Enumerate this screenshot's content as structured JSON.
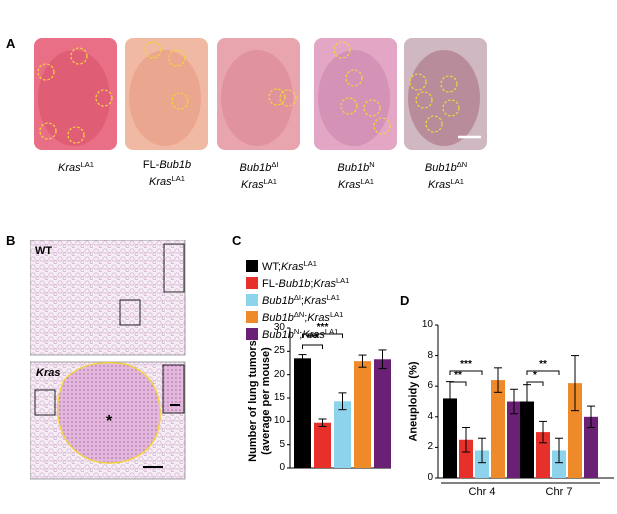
{
  "panel_labels": {
    "a": "A",
    "b": "B",
    "c": "C",
    "d": "D"
  },
  "panel_a": {
    "photos": [
      {
        "genotype_html": "<i>Kras</i><span class=\"sup\">LA1</span>"
      },
      {
        "genotype_html": "FL-<i>Bub1b</i><br><i>Kras</i><span class=\"sup\">LA1</span>"
      },
      {
        "genotype_html": "<i>Bub1b</i><span class=\"sup\">ΔI</span><br><i>Kras</i><span class=\"sup\">LA1</span>"
      },
      {
        "genotype_html": "<i>Bub1b</i><span class=\"sup\">N</span><br><i>Kras</i><span class=\"sup\">LA1</span>"
      },
      {
        "genotype_html": "<i>Bub1b</i><span class=\"sup\">ΔN</span><br><i>Kras</i><span class=\"sup\">LA1</span>"
      }
    ]
  },
  "panel_b": {
    "top_label": "WT",
    "bottom_label": "Kras",
    "tumor_marker": "*"
  },
  "colors": {
    "wt": "#000000",
    "fl": "#e8302a",
    "di": "#8dd3ec",
    "dn": "#ee8a2a",
    "n": "#6a2075",
    "tumor_outline": "#f3d23a"
  },
  "legend": [
    {
      "color": "#000000",
      "label_html": "WT;<i>Kras</i><span class=\"sup\">LA1</span>"
    },
    {
      "color": "#e8302a",
      "label_html": "FL-<i>Bub1b</i>;<i>Kras</i><span class=\"sup\">LA1</span>"
    },
    {
      "color": "#8dd3ec",
      "label_html": "<i>Bub1b</i><span class=\"sup\">ΔI</span>;<i>Kras</i><span class=\"sup\">LA1</span>"
    },
    {
      "color": "#ee8a2a",
      "label_html": "<i>Bub1b</i><span class=\"sup\">ΔN</span>;<i>Kras</i><span class=\"sup\">LA1</span>"
    },
    {
      "color": "#6a2075",
      "label_html": "<i>Bub1b</i><span class=\"sup\">N</span>;<i>Kras</i><span class=\"sup\">LA1</span>"
    }
  ],
  "chart_data": [
    {
      "panel": "C",
      "type": "bar",
      "ylabel_line1": "Number of lung tumors",
      "ylabel_line2": "(average per mouse)",
      "ylim": [
        0,
        30
      ],
      "yticks": [
        "0",
        "5",
        "10",
        "15",
        "20",
        "25",
        "30"
      ],
      "colors": [
        "#000000",
        "#e8302a",
        "#8dd3ec",
        "#ee8a2a",
        "#6a2075"
      ],
      "values": [
        23.5,
        9.7,
        14.3,
        22.9,
        23.3
      ],
      "errors": [
        0.8,
        0.8,
        1.8,
        1.3,
        2.0
      ],
      "significance": [
        {
          "from": 0,
          "to": 1,
          "label": "***"
        },
        {
          "from": 0,
          "to": 2,
          "label": "***"
        }
      ]
    },
    {
      "panel": "D",
      "type": "bar",
      "ylabel": "Aneuploidy (%)",
      "ylim": [
        0,
        10
      ],
      "yticks": [
        "0",
        "2",
        "4",
        "6",
        "8",
        "10"
      ],
      "categories": [
        "Chr 4",
        "Chr 7"
      ],
      "colors": [
        "#000000",
        "#e8302a",
        "#8dd3ec",
        "#ee8a2a",
        "#6a2075"
      ],
      "series_values": [
        [
          5.2,
          2.5,
          1.8,
          6.4,
          5.0
        ],
        [
          5.0,
          3.0,
          1.8,
          6.2,
          4.0
        ]
      ],
      "series_errors": [
        [
          1.1,
          0.8,
          0.8,
          0.8,
          0.8
        ],
        [
          1.1,
          0.7,
          0.8,
          1.8,
          0.7
        ]
      ],
      "significance": [
        [
          {
            "from": 0,
            "to": 1,
            "label": "**"
          },
          {
            "from": 0,
            "to": 2,
            "label": "***"
          }
        ],
        [
          {
            "from": 0,
            "to": 1,
            "label": "*"
          },
          {
            "from": 0,
            "to": 2,
            "label": "**"
          }
        ]
      ]
    }
  ]
}
